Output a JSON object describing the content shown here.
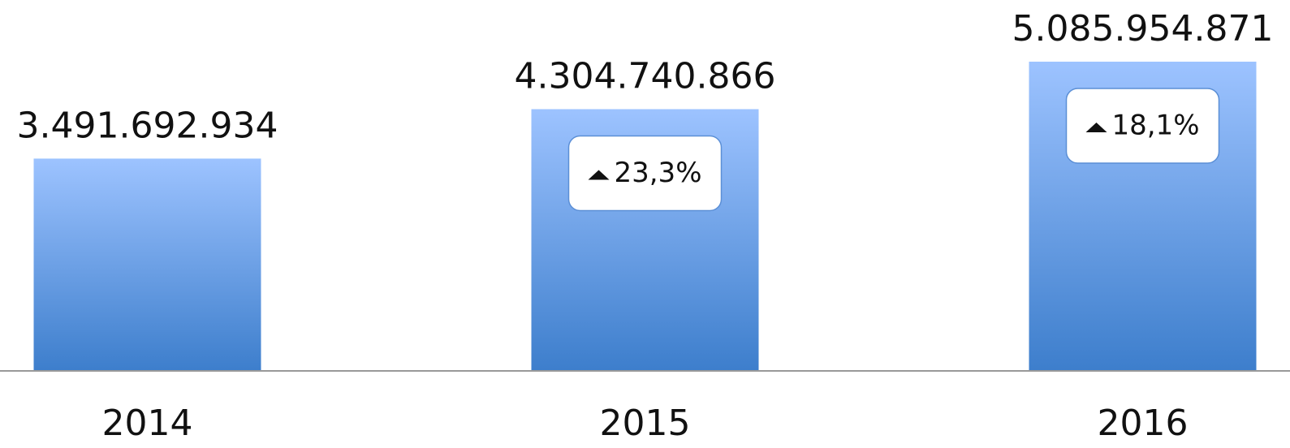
{
  "chart_data": {
    "type": "bar",
    "categories": [
      "2014",
      "2015",
      "2016"
    ],
    "values": [
      3491692934,
      4304740866,
      5085954871
    ],
    "value_labels": [
      "3.491.692.934",
      "4.304.740.866",
      "5.085.954.871"
    ],
    "growth_labels": [
      null,
      "23,3%",
      "18,1%"
    ],
    "gradient": [
      "#9dc3ff",
      "#3d7ecc"
    ],
    "ylim": [
      0,
      6100000000
    ]
  }
}
